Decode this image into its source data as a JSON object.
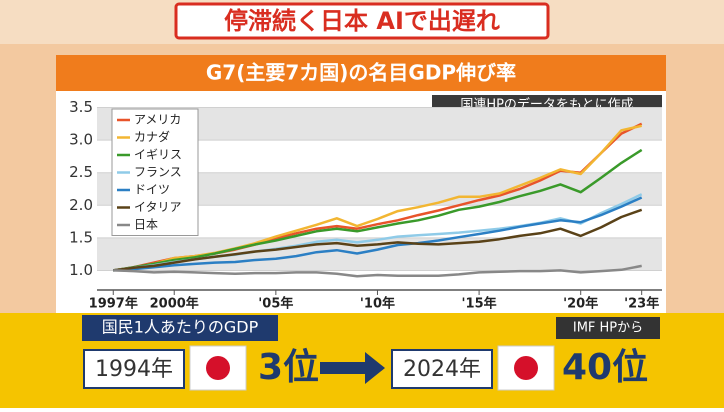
{
  "header": {
    "title": "停滞続く日本 AIで出遅れ"
  },
  "chart_data": {
    "type": "line",
    "title": "G7(主要7カ国)の名目GDP伸び率",
    "note": "国連HPのデータをもとに作成",
    "x": [
      1997,
      1998,
      1999,
      2000,
      2001,
      2002,
      2003,
      2004,
      2005,
      2006,
      2007,
      2008,
      2009,
      2010,
      2011,
      2012,
      2013,
      2014,
      2015,
      2016,
      2017,
      2018,
      2019,
      2020,
      2021,
      2022,
      2023
    ],
    "xlim": [
      1996.2,
      2024
    ],
    "ylim": [
      0.7,
      3.6
    ],
    "xticks": [
      {
        "value": 1997,
        "label": "1997年"
      },
      {
        "value": 2000,
        "label": "2000年"
      },
      {
        "value": 2005,
        "label": "'05年"
      },
      {
        "value": 2010,
        "label": "'10年"
      },
      {
        "value": 2015,
        "label": "'15年"
      },
      {
        "value": 2020,
        "label": "'20年"
      },
      {
        "value": 2023,
        "label": "'23年"
      }
    ],
    "yticks": [
      {
        "value": 1,
        "label": "1.0"
      },
      1.5,
      {
        "value": 2,
        "label": "2.0"
      },
      2.5,
      {
        "value": 3,
        "label": "3.0"
      },
      3.5
    ],
    "grid": true,
    "series": [
      {
        "name": "アメリカ",
        "color": "#e8542a",
        "values": [
          1.0,
          1.05,
          1.12,
          1.19,
          1.22,
          1.26,
          1.32,
          1.4,
          1.49,
          1.57,
          1.64,
          1.68,
          1.64,
          1.71,
          1.77,
          1.85,
          1.92,
          2.0,
          2.08,
          2.15,
          2.25,
          2.38,
          2.53,
          2.5,
          2.8,
          3.1,
          3.25
        ]
      },
      {
        "name": "カナダ",
        "color": "#f2b632",
        "values": [
          1.0,
          1.04,
          1.1,
          1.19,
          1.22,
          1.27,
          1.34,
          1.42,
          1.52,
          1.61,
          1.7,
          1.8,
          1.68,
          1.79,
          1.91,
          1.97,
          2.04,
          2.13,
          2.13,
          2.18,
          2.3,
          2.42,
          2.55,
          2.48,
          2.8,
          3.15,
          3.22
        ]
      },
      {
        "name": "イギリス",
        "color": "#3a9a2a",
        "values": [
          1.0,
          1.05,
          1.1,
          1.16,
          1.2,
          1.26,
          1.33,
          1.4,
          1.46,
          1.53,
          1.6,
          1.64,
          1.6,
          1.66,
          1.72,
          1.77,
          1.84,
          1.93,
          1.98,
          2.05,
          2.14,
          2.22,
          2.32,
          2.2,
          2.42,
          2.65,
          2.85
        ]
      },
      {
        "name": "フランス",
        "color": "#8fcbe8",
        "values": [
          1.0,
          1.04,
          1.08,
          1.13,
          1.17,
          1.21,
          1.24,
          1.29,
          1.33,
          1.38,
          1.44,
          1.47,
          1.43,
          1.47,
          1.52,
          1.54,
          1.56,
          1.58,
          1.61,
          1.64,
          1.68,
          1.73,
          1.8,
          1.72,
          1.88,
          2.02,
          2.17
        ]
      },
      {
        "name": "ドイツ",
        "color": "#2b7fc4",
        "values": [
          1.0,
          1.02,
          1.05,
          1.08,
          1.1,
          1.12,
          1.13,
          1.16,
          1.18,
          1.22,
          1.28,
          1.31,
          1.26,
          1.32,
          1.39,
          1.42,
          1.46,
          1.51,
          1.56,
          1.61,
          1.67,
          1.72,
          1.77,
          1.74,
          1.85,
          1.98,
          2.12
        ]
      },
      {
        "name": "イタリア",
        "color": "#5a4218",
        "values": [
          1.0,
          1.04,
          1.07,
          1.12,
          1.17,
          1.21,
          1.25,
          1.29,
          1.32,
          1.36,
          1.4,
          1.42,
          1.38,
          1.4,
          1.43,
          1.41,
          1.4,
          1.42,
          1.44,
          1.48,
          1.53,
          1.57,
          1.64,
          1.53,
          1.66,
          1.82,
          1.93
        ]
      },
      {
        "name": "日本",
        "color": "#888888",
        "values": [
          1.0,
          0.99,
          0.97,
          0.98,
          0.97,
          0.96,
          0.95,
          0.96,
          0.96,
          0.97,
          0.97,
          0.95,
          0.91,
          0.93,
          0.92,
          0.92,
          0.92,
          0.94,
          0.97,
          0.98,
          0.99,
          0.99,
          1.0,
          0.97,
          0.99,
          1.01,
          1.07
        ]
      }
    ]
  },
  "panel": {
    "title": "国民1人あたりのGDP",
    "source": "IMF HPから",
    "year1": "1994年",
    "rank1": "3位",
    "year2": "2024年",
    "rank2": "40位"
  }
}
